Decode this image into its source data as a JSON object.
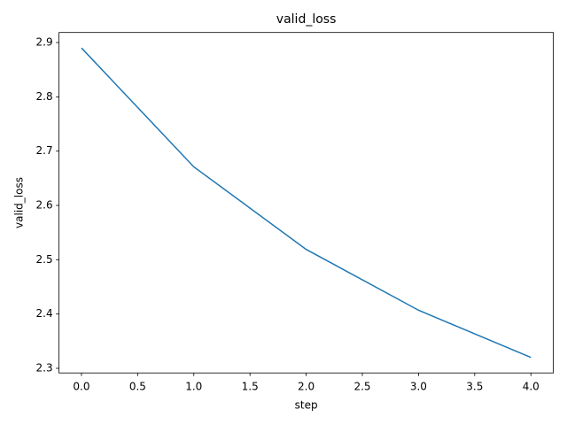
{
  "chart_data": {
    "type": "line",
    "title": "valid_loss",
    "x_label": "step",
    "y_label": "valid_loss",
    "x": [
      0,
      1,
      2,
      3,
      4
    ],
    "series": [
      {
        "name": "valid_loss",
        "color": "#1f77b4",
        "values": [
          2.89,
          2.671,
          2.519,
          2.407,
          2.32
        ]
      }
    ],
    "xlim": [
      -0.2,
      4.2
    ],
    "xticks": [
      {
        "value": 0,
        "label": "0.0"
      },
      0.5,
      {
        "value": 1,
        "label": "1.0"
      },
      1.5,
      {
        "value": 2,
        "label": "2.0"
      },
      2.5,
      {
        "value": 3,
        "label": "3.0"
      },
      3.5,
      {
        "value": 4,
        "label": "4.0"
      }
    ],
    "ylim": [
      2.2915,
      2.9185
    ],
    "yticks": [
      2.3,
      2.4,
      2.5,
      2.6,
      2.7,
      2.8,
      2.9
    ],
    "grid": false
  }
}
